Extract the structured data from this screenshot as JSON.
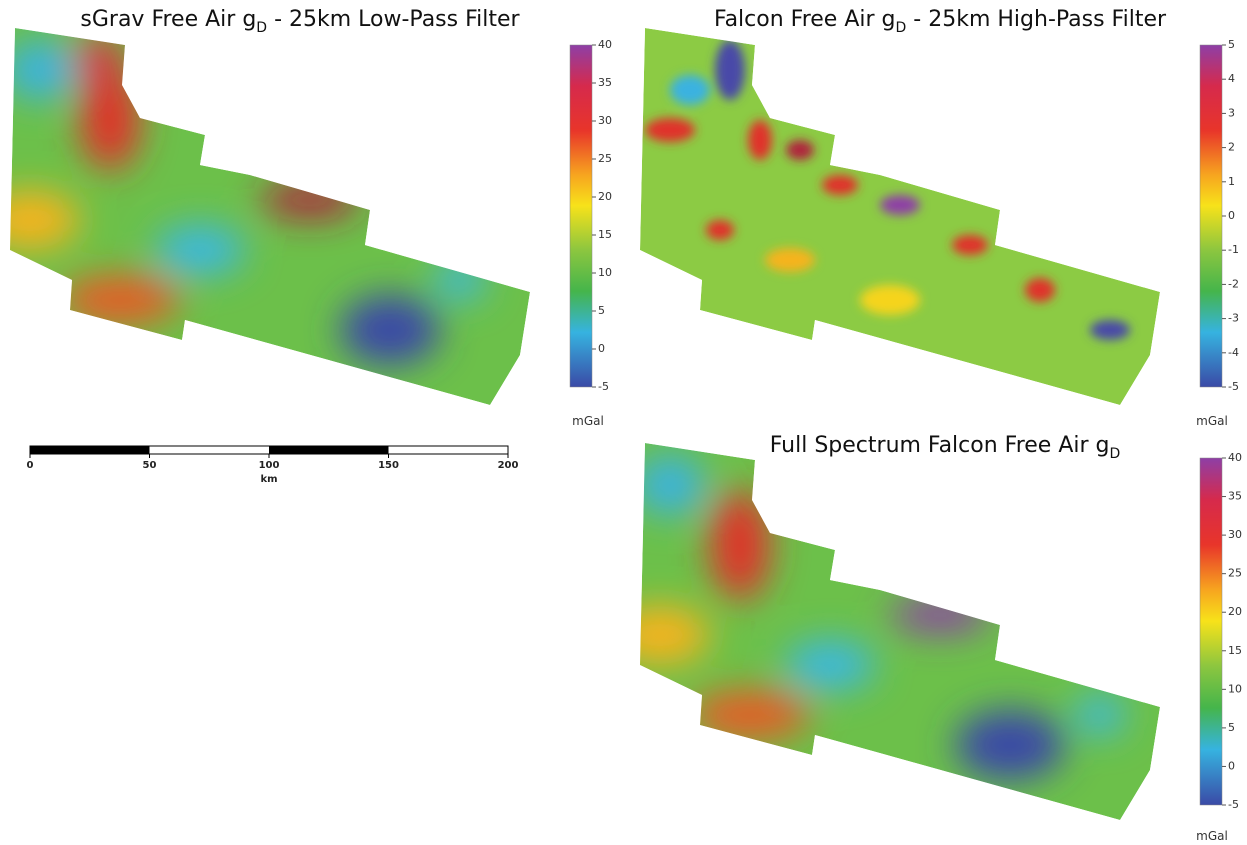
{
  "panels": [
    {
      "title": {
        "prefix": "sGrav Free Air g",
        "subscript": "D",
        "suffix": " - 25km Low-Pass Filter"
      },
      "colorbar": {
        "ticks": [
          40,
          35,
          30,
          25,
          20,
          15,
          10,
          5,
          0,
          -5
        ],
        "unit": "mGal"
      }
    },
    {
      "title": {
        "prefix": "Falcon Free Air g",
        "subscript": "D",
        "suffix": " - 25km High-Pass Filter"
      },
      "colorbar": {
        "ticks": [
          5,
          4,
          3,
          2,
          1,
          0,
          -1,
          -2,
          -3,
          -4,
          -5
        ],
        "unit": "mGal"
      }
    },
    {
      "title": {
        "prefix": "Full Spectrum Falcon Free Air g",
        "subscript": "D",
        "suffix": ""
      },
      "colorbar": {
        "ticks": [
          40,
          35,
          30,
          25,
          20,
          15,
          10,
          5,
          0,
          -5
        ],
        "unit": "mGal"
      }
    }
  ],
  "scale_bar": {
    "ticks": [
      0,
      50,
      100,
      150,
      200
    ],
    "unit": "km"
  }
}
